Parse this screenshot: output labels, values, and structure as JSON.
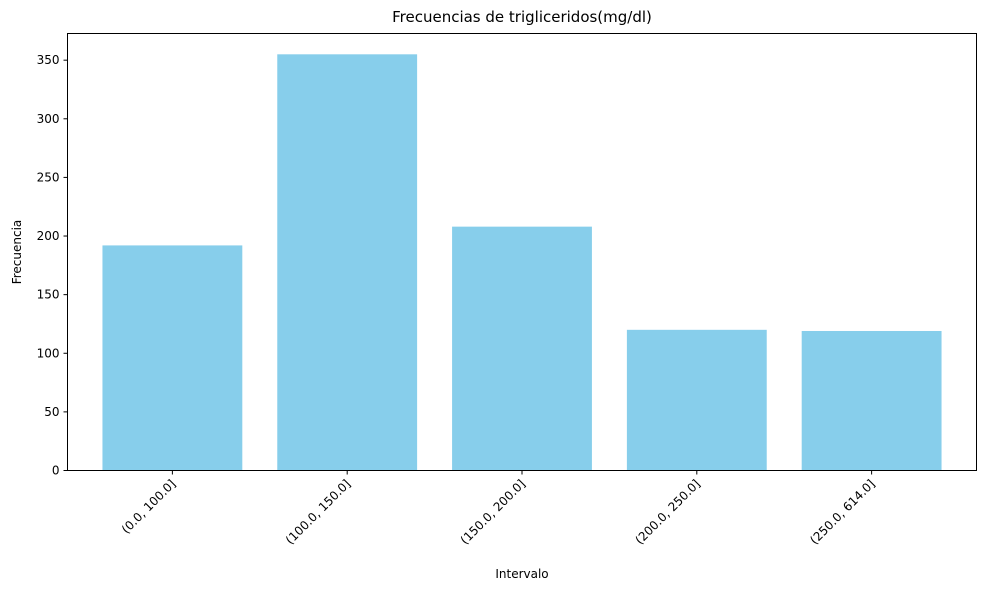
{
  "chart_data": {
    "type": "bar",
    "title": "Frecuencias de trigliceridos(mg/dl)",
    "xlabel": "Intervalo",
    "ylabel": "Frecuencia",
    "categories": [
      "(0.0, 100.0]",
      "(100.0, 150.0]",
      "(150.0, 200.0]",
      "(200.0, 250.0]",
      "(250.0, 614.0]"
    ],
    "values": [
      192,
      355,
      208,
      120,
      119
    ],
    "ylim": [
      0,
      372.75
    ],
    "yticks": [
      0,
      50,
      100,
      150,
      200,
      250,
      300,
      350
    ],
    "bar_color": "#87CEEB",
    "grid": false,
    "legend": false
  }
}
